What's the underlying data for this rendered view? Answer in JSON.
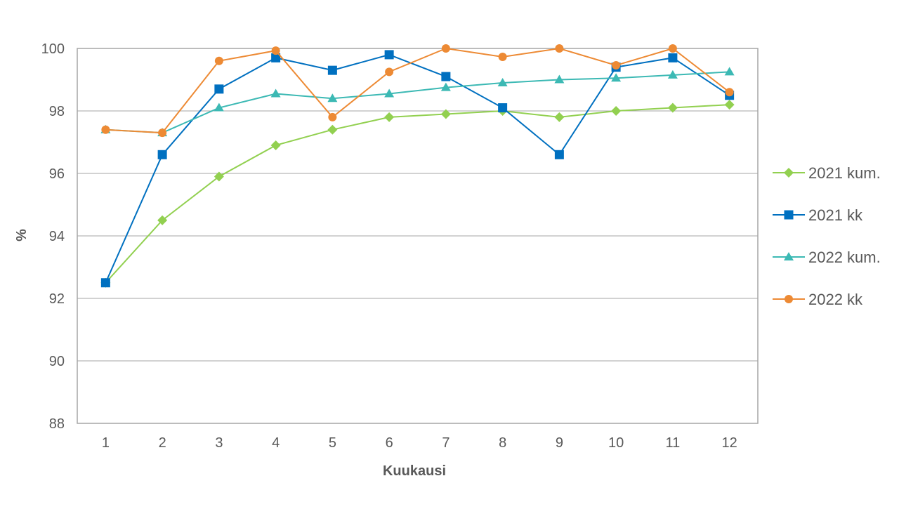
{
  "chart_data": {
    "type": "line",
    "title": "",
    "xlabel": "Kuukausi",
    "ylabel": "%",
    "ylim": [
      88,
      100
    ],
    "yticks": [
      "88",
      "90",
      "92",
      "94",
      "96",
      "98",
      "100"
    ],
    "x": [
      "1",
      "2",
      "3",
      "4",
      "5",
      "6",
      "7",
      "8",
      "9",
      "10",
      "11",
      "12"
    ],
    "grid": true,
    "legend_position": "right",
    "series": [
      {
        "name": "2021 kum.",
        "color": "#92D050",
        "marker": "diamond",
        "values": [
          92.5,
          94.5,
          95.9,
          96.9,
          97.4,
          97.8,
          97.9,
          98.0,
          97.8,
          98.0,
          98.1,
          98.2
        ]
      },
      {
        "name": "2021 kk",
        "color": "#0070C0",
        "marker": "square",
        "values": [
          92.5,
          96.6,
          98.7,
          99.7,
          99.3,
          99.8,
          99.1,
          98.1,
          96.6,
          99.4,
          99.7,
          98.5
        ]
      },
      {
        "name": "2022 kum.",
        "color": "#3CB9B4",
        "marker": "triangle",
        "values": [
          97.4,
          97.3,
          98.1,
          98.55,
          98.4,
          98.55,
          98.75,
          98.9,
          99.0,
          99.05,
          99.15,
          99.25
        ]
      },
      {
        "name": "2022 kk",
        "color": "#ED8A34",
        "marker": "circle",
        "values": [
          97.4,
          97.3,
          99.6,
          99.93,
          97.8,
          99.25,
          100.0,
          99.73,
          100.0,
          99.46,
          100.0,
          98.6
        ]
      }
    ]
  }
}
